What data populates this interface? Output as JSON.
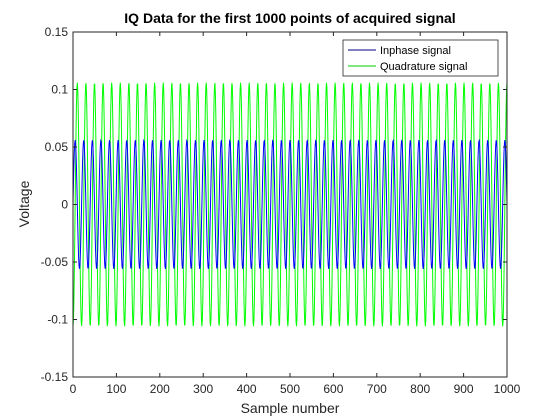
{
  "chart_data": {
    "type": "line",
    "title": "IQ Data for the first 1000 points of acquired signal",
    "xlabel": "Sample number",
    "ylabel": "Voltage",
    "xlim": [
      0,
      1000
    ],
    "ylim": [
      -0.15,
      0.15
    ],
    "xticks": [
      0,
      100,
      200,
      300,
      400,
      500,
      600,
      700,
      800,
      900,
      1000
    ],
    "yticks": [
      -0.15,
      -0.1,
      -0.05,
      0,
      0.05,
      0.1,
      0.15
    ],
    "xtick_labels": [
      "0",
      "100",
      "200",
      "300",
      "400",
      "500",
      "600",
      "700",
      "800",
      "900",
      "1000"
    ],
    "ytick_labels": [
      "-0.15",
      "-0.1",
      "-0.05",
      "0",
      "0.05",
      "0.1",
      "0.15"
    ],
    "grid": false,
    "legend_position": "top-right",
    "series": [
      {
        "name": "Inphase signal",
        "color": "#0000ff",
        "legend_color": "#000080",
        "waveform": "sinusoid",
        "amplitude": 0.056,
        "cycles_per_sample": 0.0505,
        "phase_deg": 0,
        "n_samples": 1000
      },
      {
        "name": "Quadrature signal",
        "color": "#00ff00",
        "legend_color": "#00cc00",
        "waveform": "sinusoid",
        "amplitude": 0.106,
        "cycles_per_sample": 0.0505,
        "phase_deg": -90,
        "n_samples": 1000
      }
    ]
  }
}
